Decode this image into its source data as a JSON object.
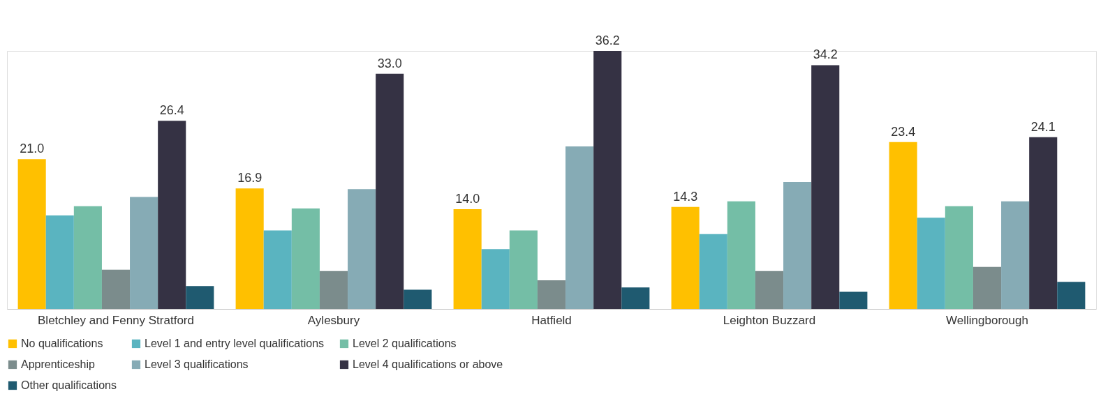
{
  "chart_data": {
    "type": "bar",
    "categories": [
      "Bletchley and Fenny Stratford",
      "Aylesbury",
      "Hatfield",
      "Leighton Buzzard",
      "Wellingborough"
    ],
    "series": [
      {
        "name": "No qualifications",
        "color": "#ffc000",
        "values": [
          21.0,
          16.9,
          14.0,
          14.3,
          23.4
        ],
        "value_labels": [
          "21.0",
          "16.9",
          "14.0",
          "14.3",
          "23.4"
        ]
      },
      {
        "name": "Level 1 and entry level qualifications",
        "color": "#5ab4c0",
        "values": [
          13.1,
          11.0,
          8.4,
          10.5,
          12.8
        ]
      },
      {
        "name": "Level 2 qualifications",
        "color": "#74bea6",
        "values": [
          14.4,
          14.1,
          11.0,
          15.1,
          14.4
        ]
      },
      {
        "name": "Apprenticeship",
        "color": "#7b8c8c",
        "values": [
          5.5,
          5.3,
          4.0,
          5.3,
          5.9
        ]
      },
      {
        "name": "Level 3 qualifications",
        "color": "#86abb5",
        "values": [
          15.7,
          16.8,
          22.8,
          17.8,
          15.1
        ]
      },
      {
        "name": "Level 4 qualifications or above",
        "color": "#353244",
        "values": [
          26.4,
          33.0,
          36.2,
          34.2,
          24.1
        ],
        "value_labels": [
          "26.4",
          "33.0",
          "36.2",
          "34.2",
          "24.1"
        ]
      },
      {
        "name": "Other qualifications",
        "color": "#1f5a70",
        "values": [
          3.2,
          2.7,
          3.0,
          2.4,
          3.8
        ]
      }
    ],
    "legend": "bottom",
    "grid": false
  }
}
